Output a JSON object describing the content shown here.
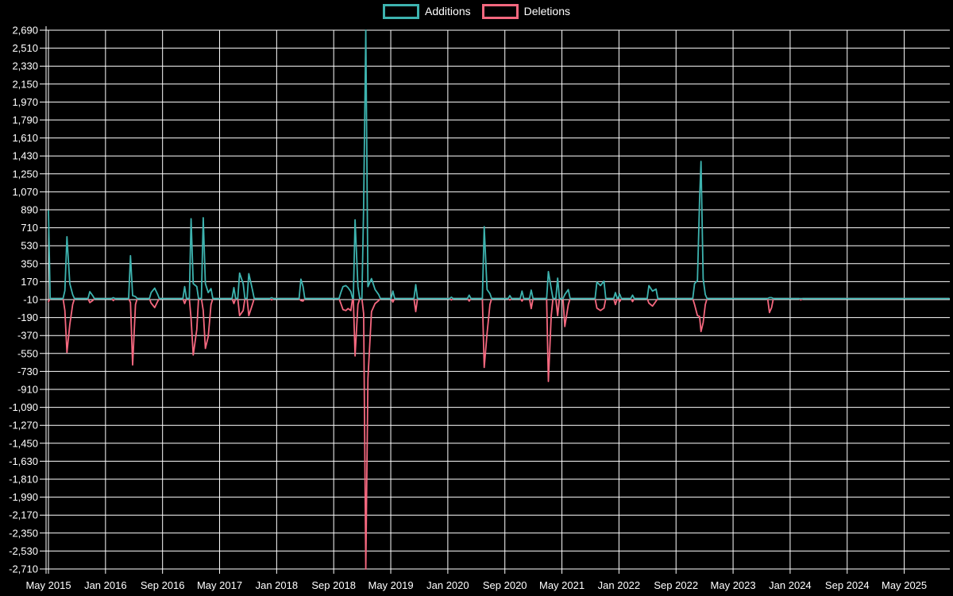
{
  "legend": {
    "additions_label": "Additions",
    "deletions_label": "Deletions"
  },
  "colors": {
    "additions": "#3db3af",
    "deletions": "#f5687f",
    "grid": "#ffffff",
    "background": "#000000",
    "text": "#ffffff"
  },
  "chart_data": {
    "type": "line",
    "title": "",
    "xlabel": "",
    "ylabel": "",
    "grid": true,
    "legend_position": "top-center",
    "ylim": [
      -2710,
      2690
    ],
    "y_tick_step": 180,
    "y_tick_labels": [
      "2,690",
      "2,510",
      "2,330",
      "2,150",
      "1,970",
      "1,790",
      "1,610",
      "1,430",
      "1,250",
      "1,070",
      "890",
      "710",
      "530",
      "350",
      "170",
      "-10",
      "-190",
      "-370",
      "-550",
      "-730",
      "-910",
      "-1,090",
      "-1,270",
      "-1,450",
      "-1,630",
      "-1,810",
      "-1,990",
      "-2,170",
      "-2,350",
      "-2,530",
      "-2,710"
    ],
    "x_tick_labels": [
      "May 2015",
      "Jan 2016",
      "Sep 2016",
      "May 2017",
      "Jan 2018",
      "Sep 2018",
      "May 2019",
      "Jan 2020",
      "Sep 2020",
      "May 2021",
      "Jan 2022",
      "Sep 2022",
      "May 2023",
      "Jan 2024",
      "Sep 2024",
      "May 2025"
    ],
    "x_unit": "months since May 2015 (weekly data)",
    "x_range_months": [
      0,
      126.3
    ],
    "x_months_per_tick": 8,
    "series": [
      {
        "name": "Additions",
        "color": "#3db3af",
        "points": [
          [
            0,
            880
          ],
          [
            2.3,
            80
          ],
          [
            2.6,
            620
          ],
          [
            3.0,
            150
          ],
          [
            3.4,
            40
          ],
          [
            5.8,
            70
          ],
          [
            6.2,
            30
          ],
          [
            9.1,
            10
          ],
          [
            11.5,
            430
          ],
          [
            11.8,
            30
          ],
          [
            12.2,
            20
          ],
          [
            14.4,
            60
          ],
          [
            14.9,
            105
          ],
          [
            15.3,
            45
          ],
          [
            19.1,
            120
          ],
          [
            20.0,
            800
          ],
          [
            20.3,
            150
          ],
          [
            20.8,
            120
          ],
          [
            21.7,
            810
          ],
          [
            22.0,
            150
          ],
          [
            22.4,
            60
          ],
          [
            22.8,
            100
          ],
          [
            26.0,
            110
          ],
          [
            26.8,
            255
          ],
          [
            27.3,
            150
          ],
          [
            28.1,
            250
          ],
          [
            28.6,
            90
          ],
          [
            31.3,
            10
          ],
          [
            35.4,
            195
          ],
          [
            35.7,
            120
          ],
          [
            41.0,
            60
          ],
          [
            41.3,
            120
          ],
          [
            41.7,
            130
          ],
          [
            42.0,
            110
          ],
          [
            42.4,
            70
          ],
          [
            43.0,
            790
          ],
          [
            43.4,
            120
          ],
          [
            44.2,
            930
          ],
          [
            44.5,
            2690
          ],
          [
            44.8,
            120
          ],
          [
            45.3,
            200
          ],
          [
            45.8,
            90
          ],
          [
            46.3,
            40
          ],
          [
            48.3,
            75
          ],
          [
            51.5,
            140
          ],
          [
            56.5,
            15
          ],
          [
            59.0,
            35
          ],
          [
            61.1,
            720
          ],
          [
            61.5,
            90
          ],
          [
            61.9,
            50
          ],
          [
            64.7,
            30
          ],
          [
            66.4,
            75
          ],
          [
            67.7,
            85
          ],
          [
            70.1,
            270
          ],
          [
            70.5,
            100
          ],
          [
            71.4,
            205
          ],
          [
            72.4,
            40
          ],
          [
            72.9,
            90
          ],
          [
            76.9,
            165
          ],
          [
            77.4,
            130
          ],
          [
            77.9,
            175
          ],
          [
            79.5,
            60
          ],
          [
            80.1,
            45
          ],
          [
            81.9,
            35
          ],
          [
            84.2,
            130
          ],
          [
            84.7,
            75
          ],
          [
            85.2,
            95
          ],
          [
            90.6,
            150
          ],
          [
            91.0,
            180
          ],
          [
            91.3,
            990
          ],
          [
            91.5,
            1375
          ],
          [
            91.8,
            200
          ],
          [
            92.1,
            40
          ],
          [
            101.1,
            10
          ],
          [
            101.4,
            10
          ],
          [
            105.5,
            0
          ]
        ]
      },
      {
        "name": "Deletions",
        "color": "#f5687f",
        "points": [
          [
            0,
            -30
          ],
          [
            2.3,
            -120
          ],
          [
            2.6,
            -540
          ],
          [
            3.0,
            -260
          ],
          [
            3.4,
            -60
          ],
          [
            5.8,
            -40
          ],
          [
            6.2,
            -20
          ],
          [
            9.1,
            -20
          ],
          [
            11.5,
            -40
          ],
          [
            11.8,
            -665
          ],
          [
            12.2,
            -60
          ],
          [
            14.4,
            -45
          ],
          [
            14.9,
            -90
          ],
          [
            15.3,
            -30
          ],
          [
            19.1,
            -50
          ],
          [
            20.0,
            -200
          ],
          [
            20.3,
            -565
          ],
          [
            20.8,
            -310
          ],
          [
            21.7,
            -120
          ],
          [
            22.0,
            -500
          ],
          [
            22.4,
            -380
          ],
          [
            22.8,
            -60
          ],
          [
            26.0,
            -50
          ],
          [
            26.8,
            -170
          ],
          [
            27.3,
            -120
          ],
          [
            28.1,
            -170
          ],
          [
            28.6,
            -60
          ],
          [
            31.3,
            -15
          ],
          [
            35.4,
            -20
          ],
          [
            35.7,
            -25
          ],
          [
            41.0,
            -50
          ],
          [
            41.3,
            -110
          ],
          [
            41.7,
            -120
          ],
          [
            42.0,
            -100
          ],
          [
            42.4,
            -120
          ],
          [
            43.0,
            -575
          ],
          [
            43.4,
            -60
          ],
          [
            44.2,
            -150
          ],
          [
            44.5,
            -2710
          ],
          [
            44.8,
            -800
          ],
          [
            45.3,
            -130
          ],
          [
            45.8,
            -50
          ],
          [
            46.3,
            -20
          ],
          [
            48.3,
            -35
          ],
          [
            51.5,
            -130
          ],
          [
            56.5,
            -15
          ],
          [
            59.0,
            -25
          ],
          [
            61.1,
            -690
          ],
          [
            61.5,
            -350
          ],
          [
            61.9,
            -60
          ],
          [
            64.7,
            -15
          ],
          [
            66.4,
            -25
          ],
          [
            67.7,
            -100
          ],
          [
            70.1,
            -830
          ],
          [
            70.5,
            -170
          ],
          [
            71.4,
            -170
          ],
          [
            72.4,
            -280
          ],
          [
            72.9,
            -60
          ],
          [
            76.9,
            -95
          ],
          [
            77.4,
            -120
          ],
          [
            77.9,
            -95
          ],
          [
            79.5,
            -60
          ],
          [
            80.1,
            -30
          ],
          [
            81.9,
            -30
          ],
          [
            84.2,
            -45
          ],
          [
            84.7,
            -75
          ],
          [
            85.2,
            -25
          ],
          [
            90.6,
            -60
          ],
          [
            91.0,
            -170
          ],
          [
            91.3,
            -180
          ],
          [
            91.5,
            -330
          ],
          [
            91.8,
            -240
          ],
          [
            92.1,
            -60
          ],
          [
            101.1,
            -140
          ],
          [
            101.4,
            -90
          ],
          [
            105.5,
            -15
          ]
        ]
      }
    ]
  }
}
